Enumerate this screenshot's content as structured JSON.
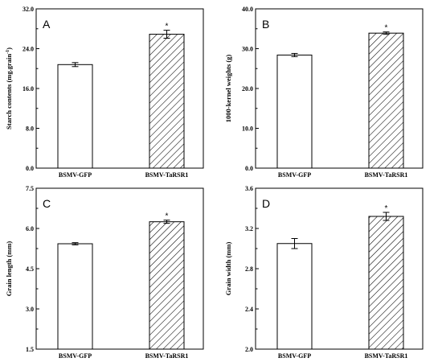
{
  "chart_data": [
    {
      "type": "bar",
      "panel": "A",
      "categories": [
        "BSMV-GFP",
        "BSMV-TaRSR1"
      ],
      "values": [
        20.8,
        26.9
      ],
      "errors": [
        0.4,
        0.8
      ],
      "significance": [
        "",
        "*"
      ],
      "ylabel": "Starch contents (mg.grain",
      "ylabel_sup": "-1",
      "ylabel_end": ")",
      "ylim": [
        0.0,
        32.0
      ],
      "yticks": [
        "0.0",
        "8.0",
        "16.0",
        "24.0",
        "32.0"
      ],
      "ytick_values": [
        0,
        8,
        16,
        24,
        32
      ]
    },
    {
      "type": "bar",
      "panel": "B",
      "categories": [
        "BSMV-GFP",
        "BSMV-TaRSR1"
      ],
      "values": [
        28.4,
        33.9
      ],
      "errors": [
        0.4,
        0.3
      ],
      "significance": [
        "",
        "*"
      ],
      "ylabel": "1000-kernel weights (g)",
      "ylim": [
        0.0,
        40.0
      ],
      "yticks": [
        "0.0",
        "10.0",
        "20.0",
        "30.0",
        "40.0"
      ],
      "ytick_values": [
        0,
        10,
        20,
        30,
        40
      ]
    },
    {
      "type": "bar",
      "panel": "C",
      "categories": [
        "BSMV-GFP",
        "BSMV-TaRSR1"
      ],
      "values": [
        5.43,
        6.25
      ],
      "errors": [
        0.04,
        0.06
      ],
      "significance": [
        "",
        "*"
      ],
      "ylabel": "Grain length (mm)",
      "ylim": [
        1.5,
        7.5
      ],
      "yticks": [
        "1.5",
        "3.0",
        "4.5",
        "6.0",
        "7.5"
      ],
      "ytick_values": [
        1.5,
        3.0,
        4.5,
        6.0,
        7.5
      ]
    },
    {
      "type": "bar",
      "panel": "D",
      "categories": [
        "BSMV-GFP",
        "BSMV-TaRSR1"
      ],
      "values": [
        3.05,
        3.32
      ],
      "errors": [
        0.05,
        0.04
      ],
      "significance": [
        "",
        "*"
      ],
      "ylabel": "Grain width (mm)",
      "ylim": [
        2.0,
        3.6
      ],
      "yticks": [
        "2.0",
        "2.4",
        "2.8",
        "3.2",
        "3.6"
      ],
      "ytick_values": [
        2.0,
        2.4,
        2.8,
        3.2,
        3.6
      ]
    }
  ]
}
